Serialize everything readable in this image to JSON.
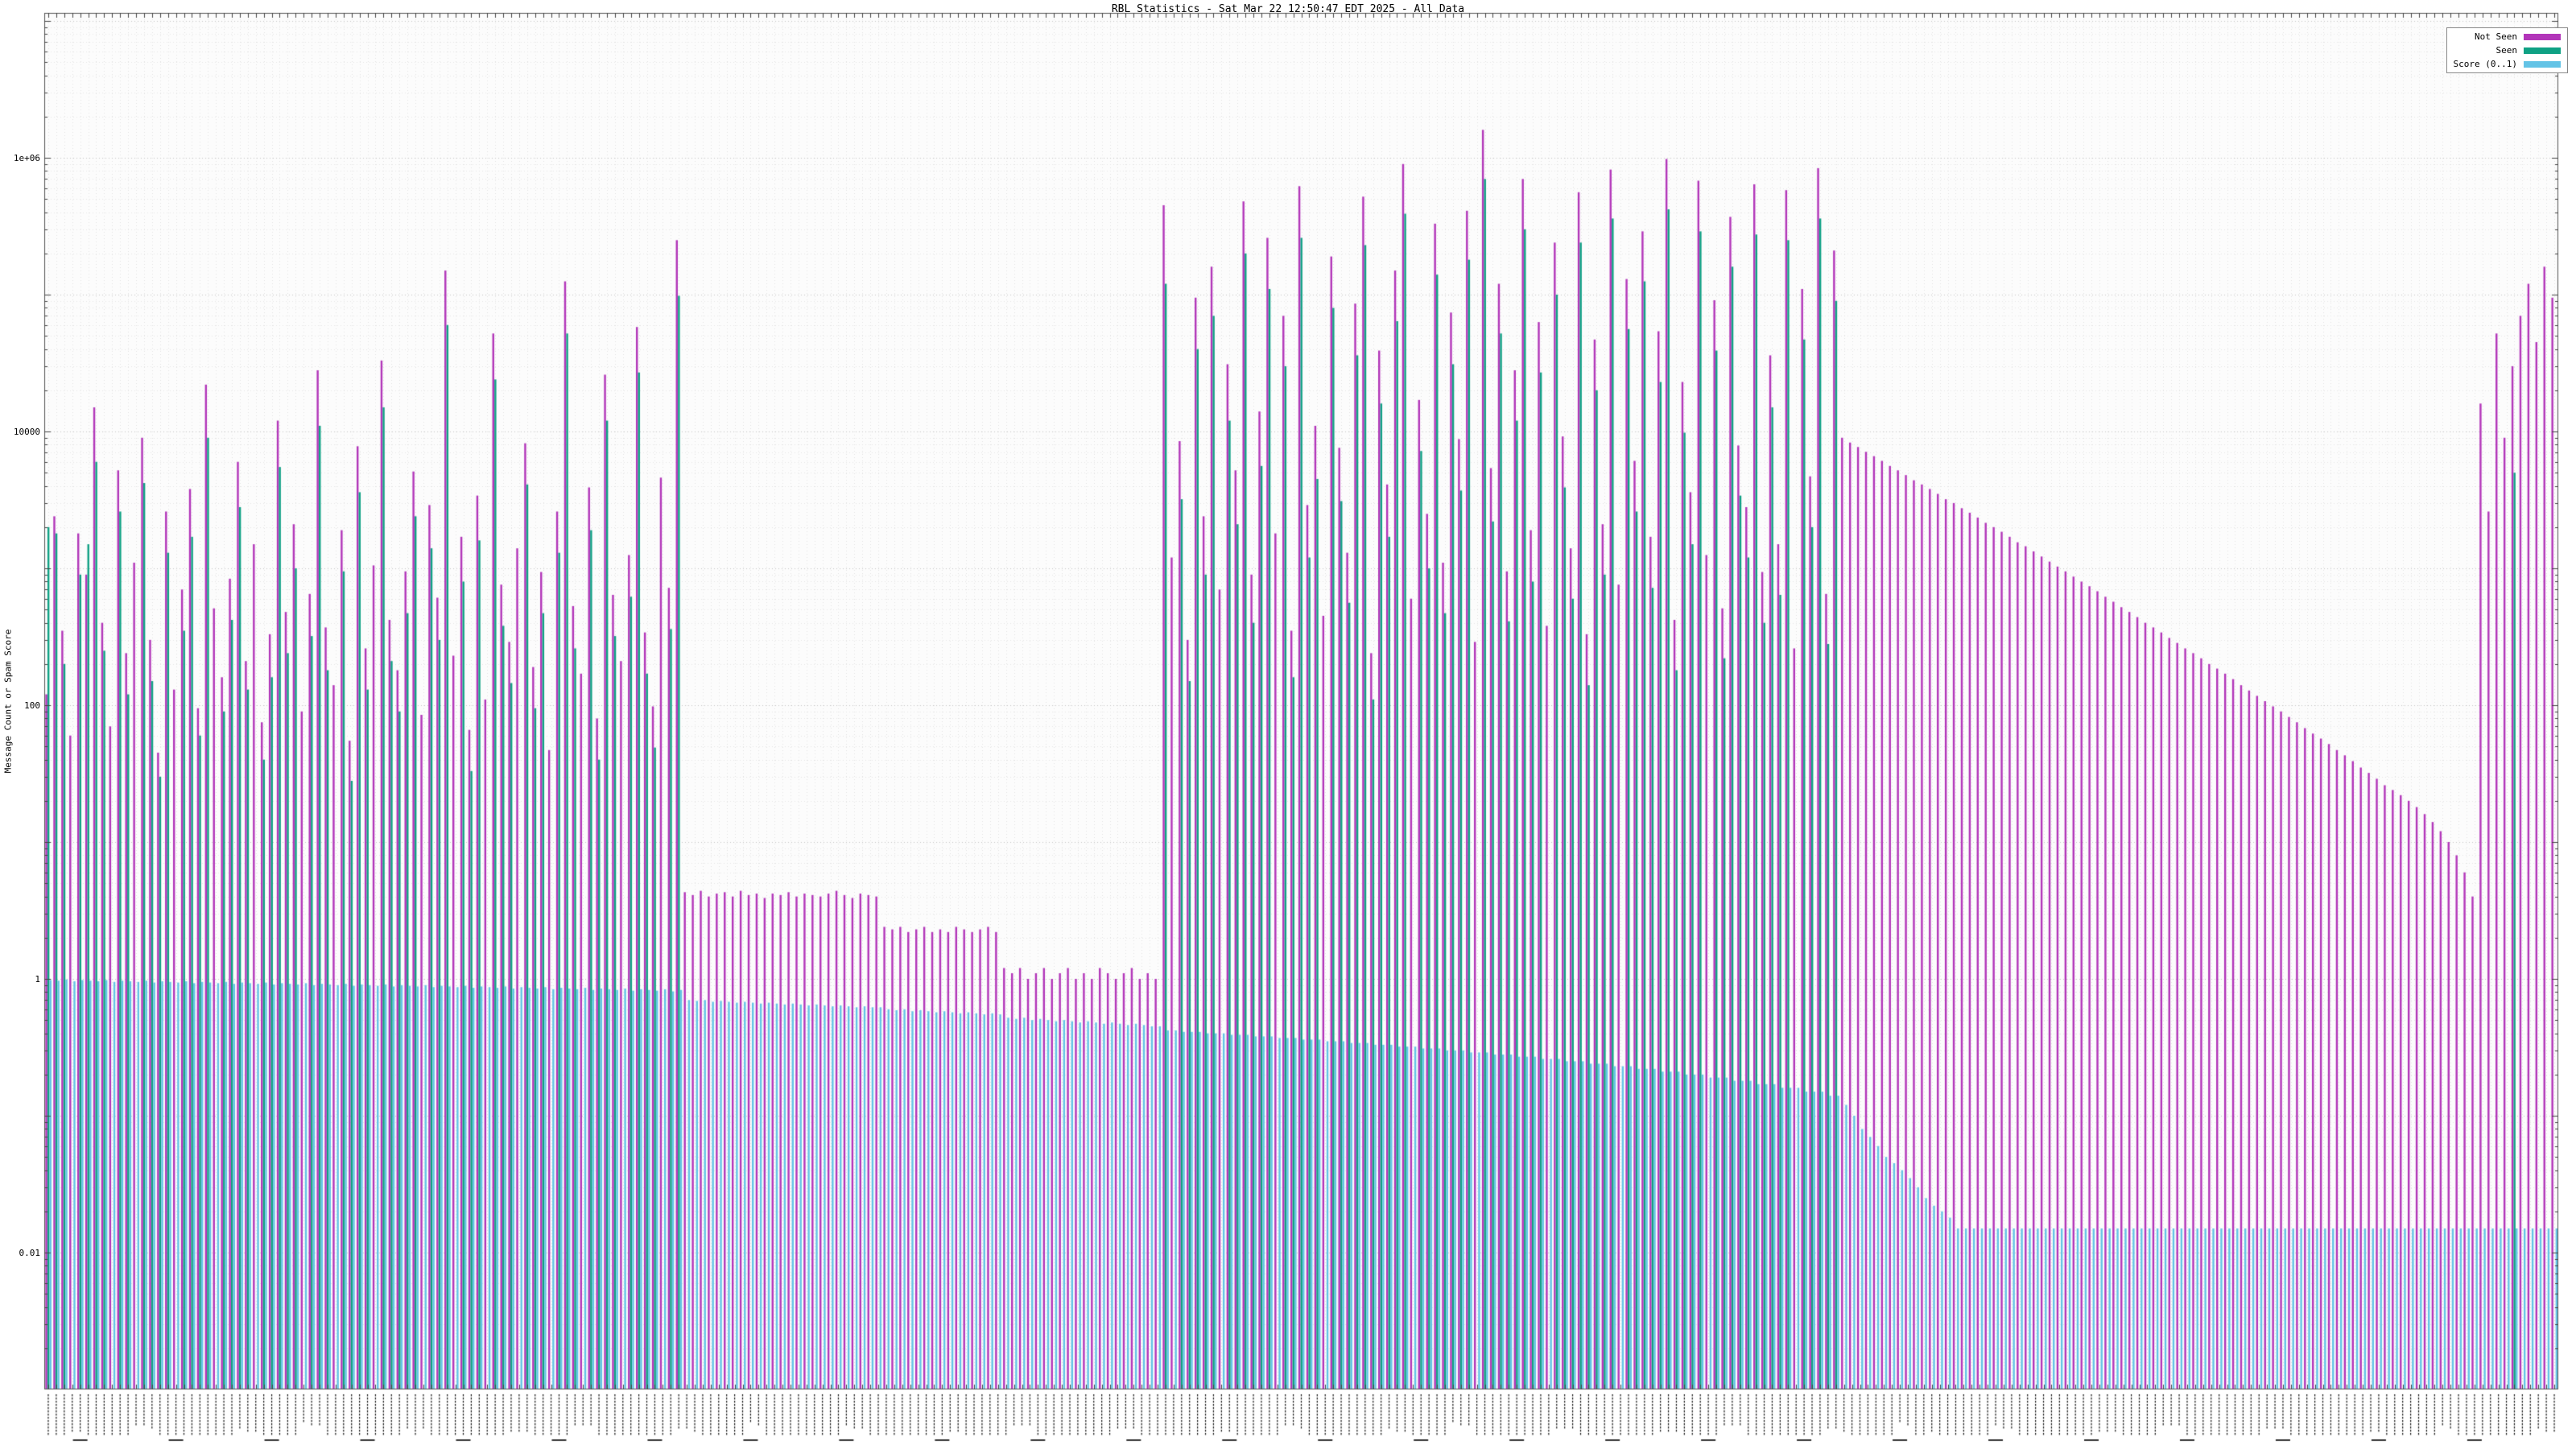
{
  "page": {
    "title": "RBL Statistics - Sat Mar 22 12:50:47 EDT 2025 - All Data"
  },
  "chart_data": {
    "type": "bar",
    "title": "RBL Statistics - Sat Mar 22 12:50:47 EDT 2025 - All Data",
    "ylabel": "Message Count or Spam Score",
    "xlabel": "",
    "yscale": "log",
    "ylim": [
      0.001,
      10000000
    ],
    "ytick_labels": [
      "1e+06",
      "10000",
      "100",
      "1",
      "0.01"
    ],
    "ytick_values": [
      1000000,
      10000,
      100,
      1,
      0.01
    ],
    "grid": true,
    "legend_position": "top-right",
    "x_axis_note": "rotated RBL hostname tick labels (illegible at this resolution)",
    "legend": [
      {
        "label": "Not Seen",
        "color": "#b235b9"
      },
      {
        "label": "Seen",
        "color": "#0fa184"
      },
      {
        "label": "Score (0..1)",
        "color": "#63c3e6"
      }
    ],
    "series": [
      {
        "name": "Not Seen",
        "color": "#b235b9",
        "values": [
          120,
          2400,
          350,
          60,
          1800,
          900,
          15000,
          400,
          70,
          5200,
          240,
          1100,
          9000,
          300,
          45,
          2600,
          130,
          700,
          3800,
          95,
          22000,
          510,
          160,
          840,
          6000,
          210,
          1500,
          75,
          330,
          12000,
          480,
          2100,
          90,
          650,
          28000,
          370,
          140,
          1900,
          55,
          7800,
          260,
          1050,
          33000,
          420,
          180,
          950,
          5100,
          85,
          2900,
          610,
          150000,
          230,
          1700,
          66,
          3400,
          110,
          52000,
          760,
          290,
          1400,
          8200,
          190,
          940,
          47,
          2600,
          125000,
          530,
          170,
          3900,
          80,
          26000,
          640,
          210,
          1250,
          58000,
          340,
          98,
          4600,
          720,
          250000,
          4.3,
          4.1,
          4.4,
          4.0,
          4.2,
          4.3,
          4.0,
          4.4,
          4.1,
          4.2,
          3.9,
          4.2,
          4.1,
          4.3,
          4.0,
          4.2,
          4.1,
          4.0,
          4.2,
          4.4,
          4.1,
          3.9,
          4.2,
          4.1,
          4.0,
          2.4,
          2.3,
          2.4,
          2.2,
          2.3,
          2.4,
          2.2,
          2.3,
          2.2,
          2.4,
          2.3,
          2.2,
          2.3,
          2.4,
          2.2,
          1.2,
          1.1,
          1.2,
          1.0,
          1.1,
          1.2,
          1.0,
          1.1,
          1.2,
          1.0,
          1.1,
          1.0,
          1.2,
          1.1,
          1.0,
          1.1,
          1.2,
          1.0,
          1.1,
          1.0,
          450000,
          1200,
          8500,
          300,
          95000,
          2400,
          160000,
          700,
          31000,
          5200,
          480000,
          900,
          14000,
          260000,
          1800,
          70000,
          350,
          620000,
          2900,
          11000,
          450,
          190000,
          7600,
          1300,
          86000,
          520000,
          240,
          39000,
          4100,
          150000,
          900000,
          600,
          17000,
          2500,
          330000,
          1100,
          74000,
          8800,
          410000,
          290,
          1600000,
          5400,
          120000,
          950,
          28000,
          700000,
          1900,
          63000,
          380,
          240000,
          9200,
          1400,
          560000,
          330,
          47000,
          2100,
          820000,
          760,
          130000,
          6100,
          290000,
          1700,
          54000,
          980000,
          420,
          23000,
          3600,
          680000,
          1250,
          91000,
          510,
          370000,
          7900,
          2800,
          640000,
          940,
          36000,
          1500,
          580000,
          260,
          110000,
          4700,
          840000,
          650,
          210000,
          9000,
          8300,
          7700,
          7100,
          6600,
          6100,
          5600,
          5200,
          4800,
          4400,
          4100,
          3800,
          3500,
          3200,
          3000,
          2750,
          2550,
          2350,
          2150,
          2000,
          1850,
          1700,
          1550,
          1450,
          1330,
          1220,
          1120,
          1030,
          950,
          870,
          800,
          740,
          680,
          620,
          570,
          520,
          480,
          440,
          400,
          370,
          340,
          310,
          285,
          260,
          240,
          220,
          200,
          185,
          170,
          155,
          140,
          128,
          117,
          107,
          98,
          90,
          82,
          75,
          68,
          62,
          57,
          52,
          47,
          43,
          39,
          35,
          32,
          29,
          26,
          24,
          22,
          20,
          18,
          16,
          14,
          12,
          10,
          8,
          6,
          4,
          16000,
          2600,
          52000,
          9000,
          30000,
          70000,
          120000,
          45000,
          160000,
          95000
        ]
      },
      {
        "name": "Seen",
        "color": "#0fa184",
        "values": [
          2000,
          1800,
          200,
          null,
          900,
          1500,
          6000,
          250,
          null,
          2600,
          120,
          null,
          4200,
          150,
          30,
          1300,
          null,
          350,
          1700,
          60,
          9000,
          null,
          90,
          420,
          2800,
          130,
          null,
          40,
          160,
          5500,
          240,
          1000,
          null,
          320,
          11000,
          180,
          null,
          950,
          28,
          3600,
          130,
          null,
          15000,
          210,
          90,
          470,
          2400,
          null,
          1400,
          300,
          60000,
          null,
          800,
          33,
          1600,
          null,
          24000,
          380,
          145,
          null,
          4100,
          95,
          470,
          null,
          1300,
          52000,
          260,
          null,
          1900,
          40,
          12000,
          320,
          null,
          620,
          27000,
          170,
          49,
          null,
          360,
          98000,
          null,
          null,
          null,
          null,
          null,
          null,
          null,
          null,
          null,
          null,
          null,
          null,
          null,
          null,
          null,
          null,
          null,
          null,
          null,
          null,
          null,
          null,
          null,
          null,
          null,
          null,
          null,
          null,
          null,
          null,
          null,
          null,
          null,
          null,
          null,
          null,
          null,
          null,
          null,
          null,
          null,
          null,
          null,
          null,
          null,
          null,
          null,
          null,
          null,
          null,
          null,
          null,
          null,
          null,
          null,
          null,
          null,
          null,
          null,
          null,
          120000,
          null,
          3200,
          150,
          40000,
          900,
          70000,
          null,
          12000,
          2100,
          200000,
          400,
          5600,
          110000,
          null,
          30000,
          160,
          260000,
          1200,
          4500,
          null,
          80000,
          3100,
          560,
          36000,
          230000,
          110,
          16000,
          1700,
          64000,
          390000,
          null,
          7200,
          1000,
          140000,
          470,
          31000,
          3700,
          180000,
          null,
          700000,
          2200,
          52000,
          410,
          12000,
          300000,
          800,
          27000,
          null,
          100000,
          3900,
          600,
          240000,
          140,
          20000,
          900,
          360000,
          null,
          56000,
          2600,
          125000,
          720,
          23000,
          420000,
          180,
          9800,
          1500,
          290000,
          null,
          39000,
          220,
          160000,
          3400,
          1200,
          275000,
          400,
          15000,
          640,
          250000,
          null,
          47000,
          2000,
          360000,
          280,
          90000,
          null,
          null,
          null,
          null,
          null,
          null,
          null,
          null,
          null,
          null,
          null,
          null,
          null,
          null,
          null,
          null,
          null,
          null,
          null,
          null,
          null,
          null,
          null,
          null,
          null,
          null,
          null,
          null,
          null,
          null,
          null,
          null,
          null,
          null,
          null,
          null,
          null,
          null,
          null,
          null,
          null,
          null,
          null,
          null,
          null,
          null,
          null,
          null,
          null,
          null,
          null,
          null,
          null,
          null,
          null,
          null,
          null,
          null,
          null,
          null,
          null,
          null,
          null,
          null,
          null,
          null,
          null,
          null,
          null,
          null,
          null,
          null,
          null,
          null,
          null,
          null,
          null,
          null,
          null,
          null,
          null,
          null,
          null,
          null,
          5000,
          null,
          null,
          null,
          null,
          null
        ]
      },
      {
        "name": "Score (0..1)",
        "color": "#63c3e6",
        "values": [
          0.98,
          0.97,
          0.99,
          0.96,
          0.98,
          0.97,
          0.96,
          0.98,
          0.95,
          0.97,
          0.96,
          0.95,
          0.97,
          0.94,
          0.96,
          0.95,
          0.94,
          0.96,
          0.93,
          0.95,
          0.94,
          0.93,
          0.95,
          0.92,
          0.94,
          0.93,
          0.92,
          0.94,
          0.91,
          0.93,
          0.92,
          0.91,
          0.93,
          0.9,
          0.92,
          0.91,
          0.9,
          0.92,
          0.89,
          0.91,
          0.9,
          0.89,
          0.91,
          0.88,
          0.9,
          0.89,
          0.88,
          0.9,
          0.87,
          0.89,
          0.88,
          0.87,
          0.89,
          0.86,
          0.88,
          0.87,
          0.86,
          0.88,
          0.85,
          0.87,
          0.86,
          0.85,
          0.87,
          0.84,
          0.86,
          0.85,
          0.84,
          0.86,
          0.83,
          0.85,
          0.84,
          0.83,
          0.85,
          0.82,
          0.84,
          0.83,
          0.82,
          0.84,
          0.81,
          0.83,
          0.7,
          0.69,
          0.7,
          0.68,
          0.69,
          0.68,
          0.67,
          0.68,
          0.67,
          0.66,
          0.67,
          0.66,
          0.65,
          0.66,
          0.65,
          0.64,
          0.65,
          0.64,
          0.63,
          0.64,
          0.63,
          0.62,
          0.63,
          0.62,
          0.62,
          0.6,
          0.59,
          0.6,
          0.58,
          0.59,
          0.58,
          0.57,
          0.58,
          0.57,
          0.56,
          0.57,
          0.56,
          0.55,
          0.56,
          0.55,
          0.52,
          0.51,
          0.52,
          0.5,
          0.51,
          0.5,
          0.49,
          0.5,
          0.49,
          0.48,
          0.49,
          0.48,
          0.47,
          0.48,
          0.47,
          0.46,
          0.47,
          0.46,
          0.45,
          0.45,
          0.42,
          0.42,
          0.41,
          0.41,
          0.41,
          0.4,
          0.4,
          0.4,
          0.39,
          0.39,
          0.39,
          0.38,
          0.38,
          0.38,
          0.37,
          0.37,
          0.37,
          0.36,
          0.36,
          0.36,
          0.35,
          0.35,
          0.35,
          0.34,
          0.34,
          0.34,
          0.33,
          0.33,
          0.33,
          0.32,
          0.32,
          0.32,
          0.31,
          0.31,
          0.31,
          0.3,
          0.3,
          0.3,
          0.29,
          0.29,
          0.29,
          0.28,
          0.28,
          0.28,
          0.27,
          0.27,
          0.27,
          0.26,
          0.26,
          0.26,
          0.25,
          0.25,
          0.25,
          0.24,
          0.24,
          0.24,
          0.23,
          0.23,
          0.23,
          0.22,
          0.22,
          0.22,
          0.21,
          0.21,
          0.21,
          0.2,
          0.2,
          0.2,
          0.19,
          0.19,
          0.19,
          0.18,
          0.18,
          0.18,
          0.17,
          0.17,
          0.17,
          0.16,
          0.16,
          0.16,
          0.15,
          0.15,
          0.15,
          0.14,
          0.14,
          0.12,
          0.1,
          0.08,
          0.07,
          0.06,
          0.05,
          0.045,
          0.04,
          0.035,
          0.03,
          0.025,
          0.022,
          0.02,
          0.018,
          0.015,
          0.015,
          0.015,
          0.015,
          0.015,
          0.015,
          0.015,
          0.015,
          0.015,
          0.015,
          0.015,
          0.015,
          0.015,
          0.015,
          0.015,
          0.015,
          0.015,
          0.015,
          0.015,
          0.015,
          0.015,
          0.015,
          0.015,
          0.015,
          0.015,
          0.015,
          0.015,
          0.015,
          0.015,
          0.015,
          0.015,
          0.015,
          0.015,
          0.015,
          0.015,
          0.015,
          0.015,
          0.015,
          0.015,
          0.015,
          0.015,
          0.015,
          0.015,
          0.015,
          0.015,
          0.015,
          0.015,
          0.015,
          0.015,
          0.015,
          0.015,
          0.015,
          0.015,
          0.015,
          0.015,
          0.015,
          0.015,
          0.015,
          0.015,
          0.015,
          0.015,
          0.015,
          0.015,
          0.015,
          0.015,
          0.015,
          0.015,
          0.015,
          0.015,
          0.015,
          0.015,
          0.015,
          0.015,
          0.015,
          0.015,
          0.015
        ]
      }
    ]
  }
}
